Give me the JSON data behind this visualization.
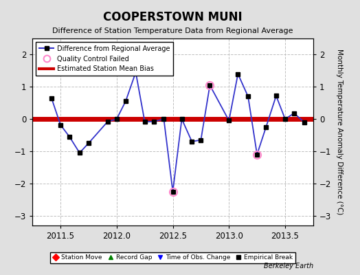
{
  "title": "COOPERSTOWN MUNI",
  "subtitle": "Difference of Station Temperature Data from Regional Average",
  "ylabel": "Monthly Temperature Anomaly Difference (°C)",
  "background_color": "#e0e0e0",
  "plot_background": "#ffffff",
  "xlim": [
    2011.25,
    2013.75
  ],
  "ylim": [
    -3.3,
    2.5
  ],
  "yticks": [
    -3,
    -2,
    -1,
    0,
    1,
    2
  ],
  "xticks": [
    2011.5,
    2012.0,
    2012.5,
    2013.0,
    2013.5
  ],
  "mean_bias": 0.0,
  "line_color": "#3333cc",
  "line_width": 1.3,
  "marker_color": "black",
  "marker_size": 4,
  "bias_color": "#cc0000",
  "bias_linewidth": 5,
  "qc_fail_color": "#ff88cc",
  "x_data": [
    2011.42,
    2011.5,
    2011.58,
    2011.67,
    2011.75,
    2011.92,
    2012.0,
    2012.08,
    2012.17,
    2012.25,
    2012.33,
    2012.42,
    2012.5,
    2012.58,
    2012.67,
    2012.75,
    2012.83,
    2013.0,
    2013.08,
    2013.17,
    2013.25,
    2013.33,
    2013.42,
    2013.5,
    2013.58,
    2013.67
  ],
  "y_data": [
    0.65,
    -0.18,
    -0.55,
    -1.05,
    -0.75,
    -0.08,
    0.0,
    0.55,
    1.45,
    -0.08,
    -0.08,
    0.0,
    -2.25,
    0.0,
    -0.7,
    -0.65,
    1.05,
    -0.05,
    1.4,
    0.7,
    -1.1,
    -0.25,
    0.72,
    0.0,
    0.18,
    -0.1
  ],
  "qc_fail_indices": [
    12,
    16,
    20
  ],
  "legend2_labels": [
    "Station Move",
    "Record Gap",
    "Time of Obs. Change",
    "Empirical Break"
  ],
  "legend2_colors": [
    "red",
    "green",
    "blue",
    "black"
  ],
  "legend2_markers": [
    "D",
    "^",
    "v",
    "s"
  ]
}
